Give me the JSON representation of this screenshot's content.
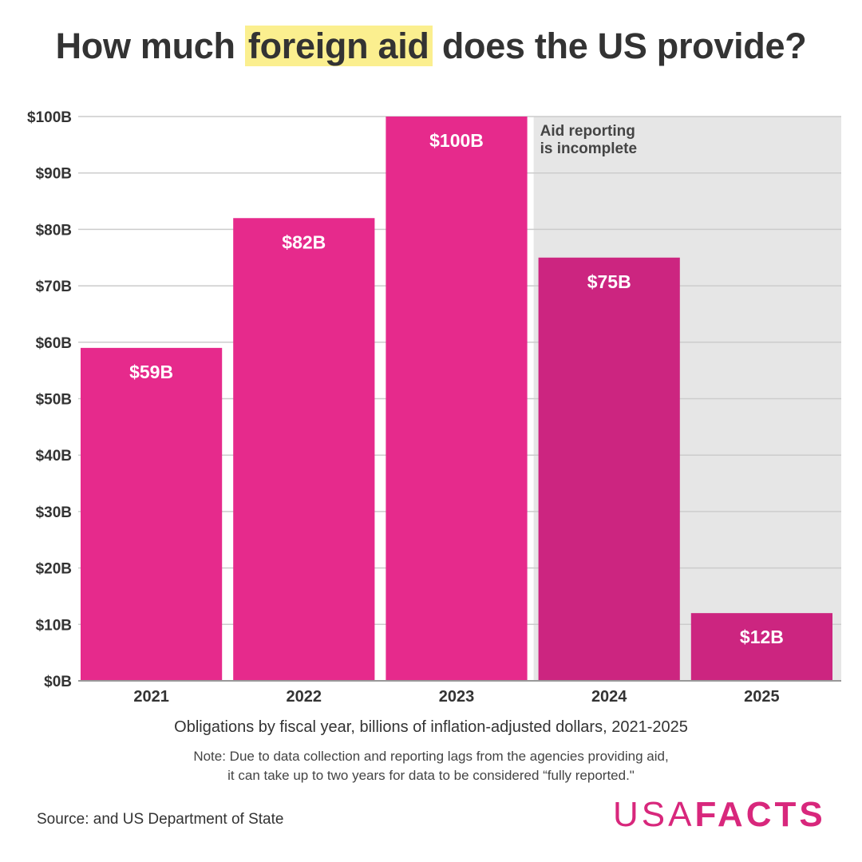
{
  "title": {
    "before": "How much ",
    "highlight": "foreign aid",
    "after": " does the US provide?"
  },
  "subtitle": "Obligations by fiscal year, billions of inflation-adjusted dollars, 2021-2025",
  "note": {
    "line1": "Note: Due to data collection and reporting lags from the agencies providing aid,",
    "line2": "it can take up to two years for data to be considered “fully reported.\""
  },
  "source": "Source:   and US Department of State",
  "logo": {
    "usa": "USA",
    "facts": "FACTS"
  },
  "colors": {
    "bar": "#e62a8c",
    "bar_incomplete": "#cc2580",
    "shade": "#e6e6e6",
    "grid": "#cccccc",
    "highlight": "#fbef8f",
    "brand": "#d8277c"
  },
  "chart_data": {
    "type": "bar",
    "categories": [
      "2021",
      "2022",
      "2023",
      "2024",
      "2025"
    ],
    "values": [
      59,
      82,
      100,
      75,
      12
    ],
    "data_labels": [
      "$59B",
      "$82B",
      "$100B",
      "$75B",
      "$12B"
    ],
    "incomplete": [
      false,
      false,
      false,
      true,
      true
    ],
    "ylim": [
      0,
      100
    ],
    "yticks": [
      0,
      10,
      20,
      30,
      40,
      50,
      60,
      70,
      80,
      90,
      100
    ],
    "ytick_labels": [
      "$0B",
      "$10B",
      "$20B",
      "$30B",
      "$40B",
      "$50B",
      "$60B",
      "$70B",
      "$80B",
      "$90B",
      "$100B"
    ],
    "annotation": {
      "line1": "Aid reporting",
      "line2": "is incomplete"
    },
    "grid": true
  }
}
